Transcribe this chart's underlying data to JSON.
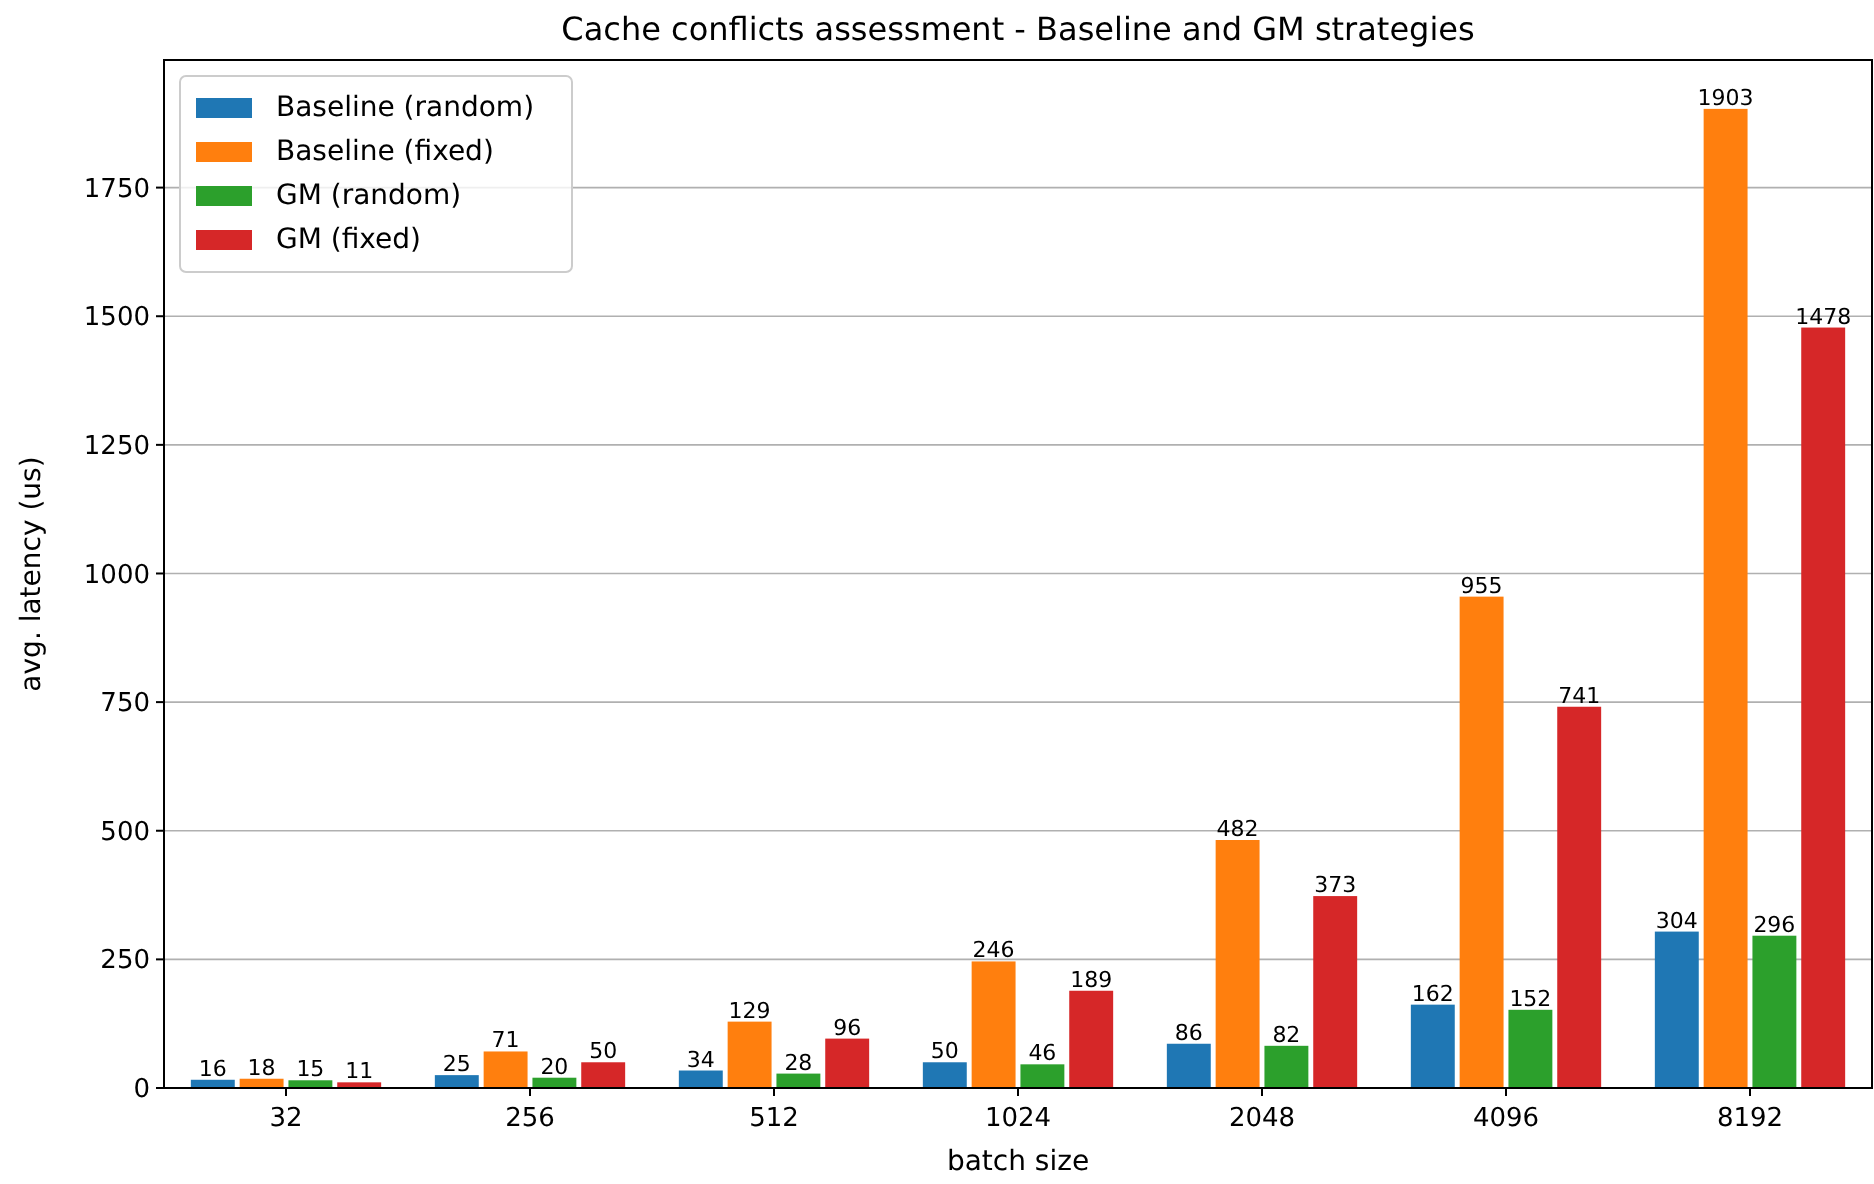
{
  "chart_data": {
    "type": "bar",
    "title": "Cache conflicts assessment - Baseline and GM strategies",
    "xlabel": "batch size",
    "ylabel": "avg. latency (us)",
    "categories": [
      "32",
      "256",
      "512",
      "1024",
      "2048",
      "4096",
      "8192"
    ],
    "series": [
      {
        "name": "Baseline (random)",
        "color": "#1f77b4",
        "values": [
          16,
          25,
          34,
          50,
          86,
          162,
          304
        ]
      },
      {
        "name": "Baseline (fixed)",
        "color": "#ff7f0e",
        "values": [
          18,
          71,
          129,
          246,
          482,
          955,
          1903
        ]
      },
      {
        "name": "GM (random)",
        "color": "#2ca02c",
        "values": [
          15,
          20,
          28,
          46,
          82,
          152,
          296
        ]
      },
      {
        "name": "GM (fixed)",
        "color": "#d62728",
        "values": [
          11,
          50,
          96,
          189,
          373,
          741,
          1478
        ]
      }
    ],
    "ylim": [
      0,
      1998
    ],
    "yticks": [
      0,
      250,
      500,
      750,
      1000,
      1250,
      1500,
      1750
    ],
    "grid": "y",
    "legend": "top left",
    "data_labels": true
  }
}
